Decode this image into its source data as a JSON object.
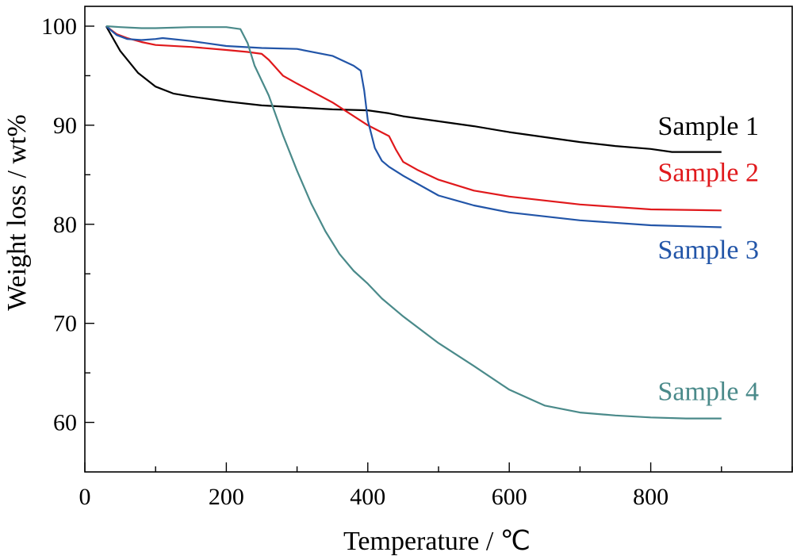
{
  "chart_data": {
    "type": "line",
    "xlabel": "Temperature / ℃",
    "ylabel": "Weight loss / wt%",
    "xlim": [
      0,
      1000
    ],
    "ylim": [
      55,
      102
    ],
    "xticks": [
      0,
      200,
      400,
      600,
      800
    ],
    "yticks": [
      60,
      70,
      80,
      90,
      100
    ],
    "grid": false,
    "legend": "inline labels at right",
    "series": [
      {
        "name": "Sample 1",
        "color": "#000000",
        "label_y": 90,
        "x": [
          30,
          50,
          75,
          100,
          125,
          150,
          200,
          250,
          300,
          350,
          400,
          430,
          450,
          500,
          550,
          600,
          650,
          700,
          750,
          800,
          830,
          850,
          900
        ],
        "y": [
          100,
          97.5,
          95.3,
          93.9,
          93.2,
          92.9,
          92.4,
          92.0,
          91.8,
          91.6,
          91.5,
          91.2,
          90.9,
          90.4,
          89.9,
          89.3,
          88.8,
          88.3,
          87.9,
          87.6,
          87.3,
          87.3,
          87.3
        ]
      },
      {
        "name": "Sample 2",
        "color": "#e0191c",
        "label_y": 85.3,
        "x": [
          30,
          45,
          60,
          80,
          100,
          150,
          200,
          230,
          250,
          260,
          280,
          300,
          350,
          400,
          430,
          440,
          450,
          470,
          500,
          550,
          600,
          650,
          700,
          800,
          900
        ],
        "y": [
          100,
          99.2,
          98.8,
          98.4,
          98.1,
          97.9,
          97.6,
          97.4,
          97.2,
          96.6,
          95.0,
          94.2,
          92.3,
          90.0,
          88.9,
          87.5,
          86.3,
          85.5,
          84.5,
          83.4,
          82.8,
          82.4,
          82.0,
          81.5,
          81.4
        ]
      },
      {
        "name": "Sample 3",
        "color": "#2255a8",
        "label_y": 77.5,
        "x": [
          30,
          45,
          60,
          80,
          100,
          110,
          150,
          200,
          250,
          300,
          350,
          380,
          390,
          395,
          400,
          410,
          420,
          430,
          450,
          500,
          550,
          600,
          650,
          700,
          800,
          900
        ],
        "y": [
          100,
          99.1,
          98.7,
          98.6,
          98.7,
          98.8,
          98.5,
          98.0,
          97.8,
          97.7,
          97.0,
          96.0,
          95.5,
          93.5,
          90.5,
          87.7,
          86.4,
          85.8,
          84.9,
          82.9,
          81.9,
          81.2,
          80.8,
          80.4,
          79.9,
          79.7
        ]
      },
      {
        "name": "Sample 4",
        "color": "#4a8a8a",
        "label_y": 63.2,
        "x": [
          30,
          50,
          80,
          100,
          150,
          200,
          220,
          230,
          240,
          260,
          280,
          300,
          320,
          340,
          360,
          380,
          400,
          420,
          450,
          500,
          550,
          600,
          650,
          700,
          750,
          800,
          850,
          900
        ],
        "y": [
          100,
          99.9,
          99.8,
          99.8,
          99.9,
          99.9,
          99.7,
          98.3,
          96.0,
          93.0,
          89.0,
          85.4,
          82.1,
          79.3,
          77.0,
          75.3,
          74.0,
          72.5,
          70.7,
          68.0,
          65.7,
          63.3,
          61.7,
          61.0,
          60.7,
          60.5,
          60.4,
          60.4
        ]
      }
    ]
  }
}
